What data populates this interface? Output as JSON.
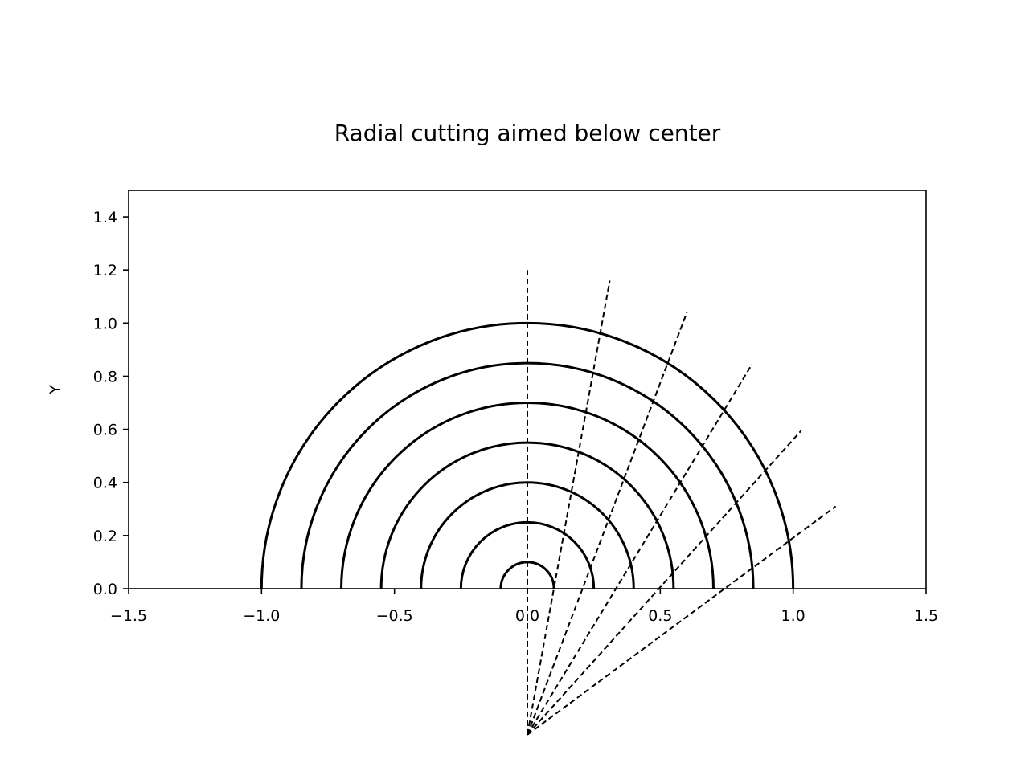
{
  "chart_data": {
    "type": "line",
    "title": "Radial cutting aimed below center",
    "xlabel": "",
    "ylabel": "Y",
    "xlim": [
      -1.5,
      1.5
    ],
    "ylim": [
      0.0,
      1.5
    ],
    "xticks": [
      -1.5,
      -1.0,
      -0.5,
      0.0,
      0.5,
      1.0,
      1.5
    ],
    "xtick_labels": [
      "−1.5",
      "−1.0",
      "−0.5",
      "0.0",
      "0.5",
      "1.0",
      "1.5"
    ],
    "yticks": [
      0.0,
      0.2,
      0.4,
      0.6,
      0.8,
      1.0,
      1.2,
      1.4
    ],
    "ytick_labels": [
      "0.0",
      "0.2",
      "0.4",
      "0.6",
      "0.8",
      "1.0",
      "1.2",
      "1.4"
    ],
    "grid": false,
    "legend": "none",
    "line_color": "#000000",
    "semicircles": {
      "center": [
        0.0,
        0.0
      ],
      "radii": [
        0.1,
        0.25,
        0.4,
        0.55,
        0.7,
        0.85,
        1.0
      ],
      "style": "solid"
    },
    "cut_lines": {
      "origin": [
        0.0,
        -0.55
      ],
      "endpoints": [
        [
          0.0,
          1.2
        ],
        [
          0.31,
          1.16
        ],
        [
          0.6,
          1.04
        ],
        [
          0.845,
          0.845
        ],
        [
          1.03,
          0.595
        ],
        [
          1.16,
          0.31
        ]
      ],
      "style": "dashed"
    }
  }
}
